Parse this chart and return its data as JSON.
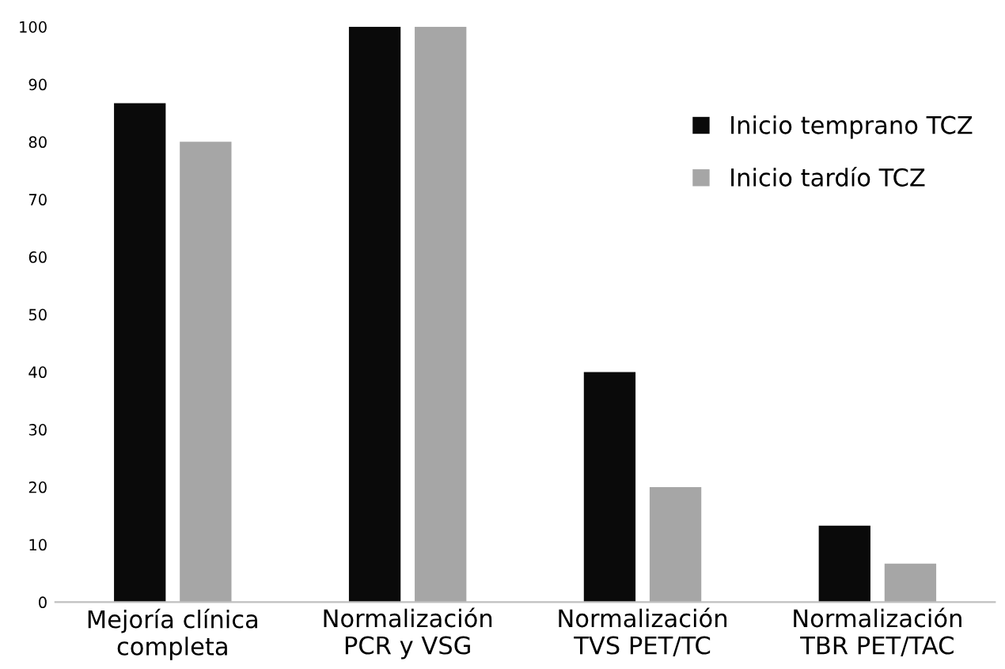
{
  "chart_data": {
    "type": "bar",
    "categories": [
      "Mejoría clínica\ncompleta",
      "Normalización\nPCR y VSG",
      "Normalización\nTVS PET/TC",
      "Normalización\nTBR PET/TAC"
    ],
    "series": [
      {
        "name": "Inicio temprano TCZ",
        "color": "#0a0a0a",
        "values": [
          86.7,
          100,
          40,
          13.3
        ]
      },
      {
        "name": "Inicio tardío TCZ",
        "color": "#a6a6a6",
        "values": [
          80,
          100,
          20,
          6.7
        ]
      }
    ],
    "ylim": [
      0,
      100
    ],
    "yticks": [
      0,
      10,
      20,
      30,
      40,
      50,
      60,
      70,
      80,
      90,
      100
    ],
    "grid": false,
    "legend": "right"
  }
}
